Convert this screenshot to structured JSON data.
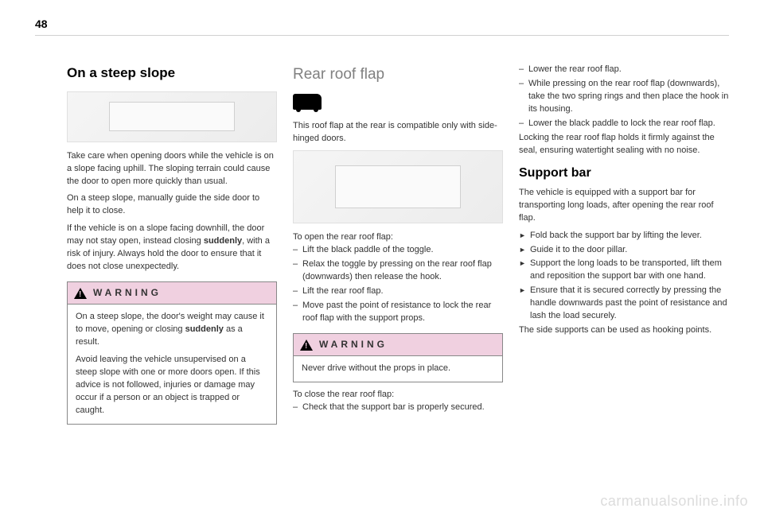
{
  "page_number": "48",
  "watermark": "carmanualsonline.info",
  "col1": {
    "heading": "On a steep slope",
    "para1": "Take care when opening doors while the vehicle is on a slope facing uphill. The sloping terrain could cause the door to open more quickly than usual.",
    "para2": "On a steep slope, manually guide the side door to help it to close.",
    "para3_a": "If the vehicle is on a slope facing downhill, the door may not stay open, instead closing ",
    "para3_bold": "suddenly",
    "para3_b": ", with a risk of injury. Always hold the door to ensure that it does not close unexpectedly.",
    "warning": {
      "label": "WARNING",
      "text_a": "On a steep slope, the door's weight may cause it to move, opening or closing ",
      "text_bold": "suddenly",
      "text_b": " as a result.",
      "text_c": "Avoid leaving the vehicle unsupervised on a steep slope with one or more doors open. If this advice is not followed, injuries or damage may occur if a person or an object is trapped or caught."
    }
  },
  "col2": {
    "heading": "Rear roof flap",
    "para1": "This roof flap at the rear is compatible only with side-hinged doors.",
    "open_intro": "To open the rear roof flap:",
    "open_items": [
      "Lift the black paddle of the toggle.",
      "Relax the toggle by pressing on the rear roof flap (downwards) then release the hook.",
      "Lift the rear roof flap.",
      "Move past the point of resistance to lock the rear roof flap with the support props."
    ],
    "warning": {
      "label": "WARNING",
      "text": "Never drive without the props in place."
    },
    "close_intro": "To close the rear roof flap:",
    "close_items": [
      "Check that the support bar is properly secured."
    ]
  },
  "col3": {
    "top_items": [
      "Lower the rear roof flap.",
      "While pressing on the rear roof flap (downwards), take the two spring rings and then place the hook in its housing.",
      "Lower the black paddle to lock the rear roof flap."
    ],
    "para_after": "Locking the rear roof flap holds it firmly against the seal, ensuring watertight sealing with no noise.",
    "heading2": "Support bar",
    "para2": "The vehicle is equipped with a support bar for transporting long loads, after opening the rear roof flap.",
    "arrow_items": [
      "Fold back the support bar by lifting the lever.",
      "Guide it to the door pillar.",
      "Support the long loads to be transported, lift them and reposition the support bar with one hand.",
      "Ensure that it is secured correctly by pressing the handle downwards past the point of resistance and lash the load securely."
    ],
    "para3": "The side supports can be used as hooking points."
  }
}
